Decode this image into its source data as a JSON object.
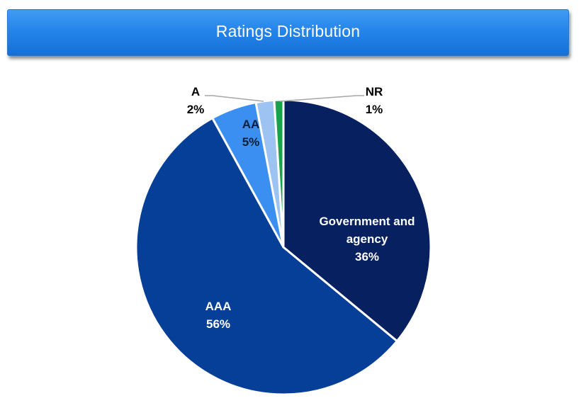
{
  "header": {
    "title": "Ratings Distribution"
  },
  "chart_data": {
    "type": "pie",
    "title": "Ratings Distribution",
    "slices": [
      {
        "label": "Government and agency",
        "label_lines": [
          "Government and",
          "agency"
        ],
        "value": 36,
        "pct_text": "36%",
        "color": "#072160"
      },
      {
        "label": "AAA",
        "label_lines": [
          "AAA"
        ],
        "value": 56,
        "pct_text": "56%",
        "color": "#053f97"
      },
      {
        "label": "AA",
        "label_lines": [
          "AA"
        ],
        "value": 5,
        "pct_text": "5%",
        "color": "#3b8ff0"
      },
      {
        "label": "A",
        "label_lines": [
          "A"
        ],
        "value": 2,
        "pct_text": "2%",
        "color": "#9dc3f3"
      },
      {
        "label": "NR",
        "label_lines": [
          "NR"
        ],
        "value": 1,
        "pct_text": "1%",
        "color": "#16a34a"
      }
    ]
  }
}
